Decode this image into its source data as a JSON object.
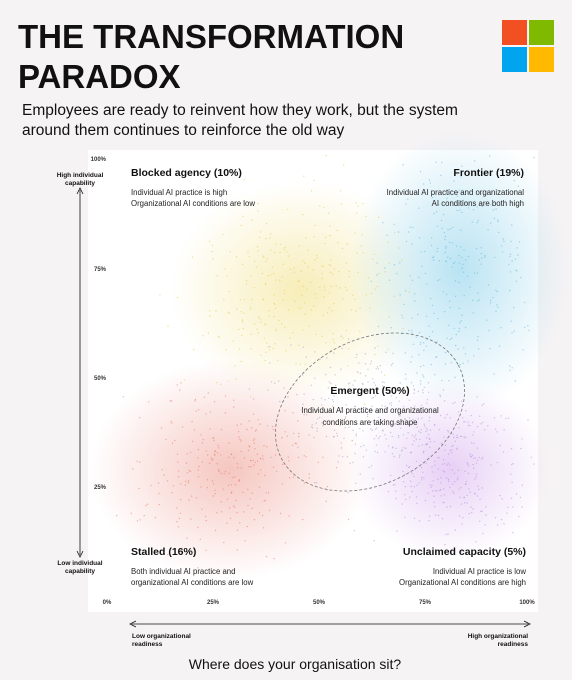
{
  "header": {
    "title_line1": "THE TRANSFORMATION",
    "title_line2": "PARADOX",
    "subtitle_line1": "Employees are ready to reinvent how they work, but the system",
    "subtitle_line2": "around them continues to reinforce the old way"
  },
  "y_axis": {
    "high_line1": "High individual",
    "high_line2": "capability",
    "low_line1": "Low individual",
    "low_line2": "capability",
    "ticks": [
      "100%",
      "75%",
      "50%",
      "25%"
    ]
  },
  "x_axis": {
    "low_line1": "Low organizational",
    "low_line2": "readiness",
    "high_line1": "High organizational",
    "high_line2": "readiness",
    "ticks": [
      "0%",
      "25%",
      "50%",
      "75%",
      "100%"
    ]
  },
  "quadrants": [
    {
      "title": "Blocked agency (10%)",
      "lines": [
        "Individual AI practice is high",
        "Organizational AI conditions are low"
      ]
    },
    {
      "title": "Frontier (19%)",
      "lines": [
        "Individual AI practice and organizational",
        "AI conditions are both high"
      ]
    },
    {
      "title": "Emergent (50%)",
      "lines": [
        "Individual AI practice and organizational",
        "conditions are taking shape"
      ]
    },
    {
      "title": "Stalled (16%)",
      "lines": [
        "Both individual AI practice and",
        "organizational AI conditions are low"
      ]
    },
    {
      "title": "Unclaimed capacity (5%)",
      "lines": [
        "Individual AI practice is low",
        "Organizational AI conditions are high"
      ]
    }
  ],
  "footer": "Where does your organisation sit?"
}
